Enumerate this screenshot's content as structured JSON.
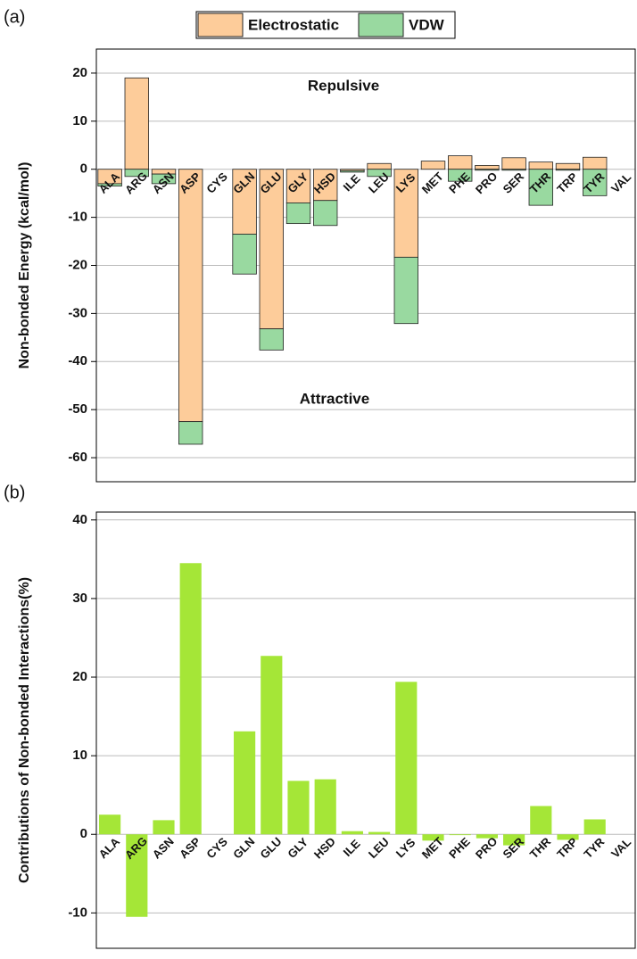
{
  "chart_data": [
    {
      "type": "bar",
      "stacked": true,
      "label": "(a)",
      "ylabel": "Non-bonded Energy (kcal/mol)",
      "annotations": [
        "Repulsive",
        "Attractive"
      ],
      "categories": [
        "ALA",
        "ARG",
        "ASN",
        "ASP",
        "CYS",
        "GLN",
        "GLU",
        "GLY",
        "HSD",
        "ILE",
        "LEU",
        "LYS",
        "MET",
        "PHE",
        "PRO",
        "SER",
        "THR",
        "TRP",
        "TYR",
        "VAL"
      ],
      "series": [
        {
          "name": "Electrostatic",
          "color": "#fdcc9a",
          "values": [
            -3.0,
            19.0,
            -1.0,
            -52.5,
            0,
            -13.5,
            -33.2,
            -7.0,
            -6.5,
            -0.3,
            1.2,
            -18.3,
            1.7,
            2.8,
            0.8,
            2.4,
            1.5,
            1.2,
            2.5,
            0
          ]
        },
        {
          "name": "VDW",
          "color": "#99d9a0",
          "values": [
            -0.5,
            -1.5,
            -2.0,
            -4.7,
            0,
            -8.3,
            -4.4,
            -4.3,
            -5.2,
            -0.3,
            -1.5,
            -13.8,
            0,
            -2.5,
            -0.2,
            -0.2,
            -7.5,
            -0.2,
            -5.5,
            0
          ]
        }
      ],
      "ylim": [
        -65,
        25
      ],
      "yticks": [
        -60,
        -50,
        -40,
        -30,
        -20,
        -10,
        0,
        10,
        20
      ],
      "grid": true,
      "legend": "top"
    },
    {
      "type": "bar",
      "label": "(b)",
      "ylabel": "Contributions of Non-bonded Interactions(%)",
      "categories": [
        "ALA",
        "ARG",
        "ASN",
        "ASP",
        "CYS",
        "GLN",
        "GLU",
        "GLY",
        "HSD",
        "ILE",
        "LEU",
        "LYS",
        "MET",
        "PHE",
        "PRO",
        "SER",
        "THR",
        "TRP",
        "TYR",
        "VAL"
      ],
      "values": [
        2.5,
        -10.5,
        1.8,
        34.5,
        0,
        13.1,
        22.7,
        6.8,
        7.0,
        0.4,
        0.3,
        19.4,
        -0.8,
        -0.1,
        -0.5,
        -1.4,
        3.6,
        -0.7,
        1.9,
        0
      ],
      "color": "#a5e637",
      "ylim": [
        -14.5,
        41
      ],
      "yticks": [
        -10,
        0,
        10,
        20,
        30,
        40
      ],
      "grid": true
    }
  ]
}
